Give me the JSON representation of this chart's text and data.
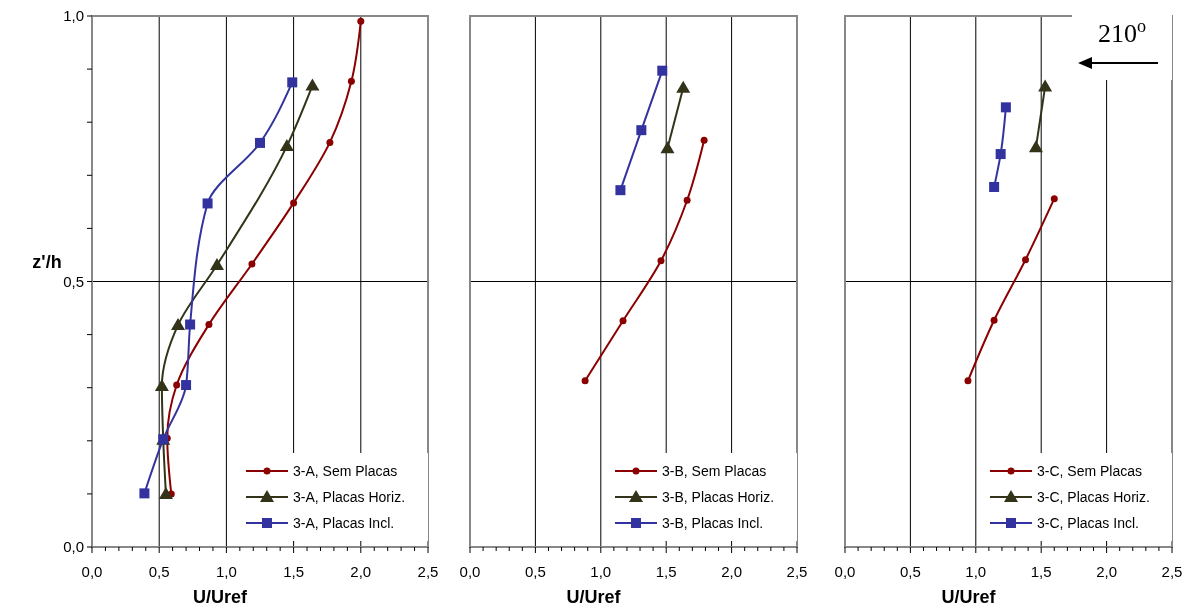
{
  "chart_data": [
    {
      "type": "line",
      "xlabel": "U/Uref",
      "ylabel": "z'/h",
      "xlim": [
        0,
        2.5
      ],
      "ylim": [
        0,
        1
      ],
      "xticks": [
        {
          "value": 0,
          "label": "0,0"
        },
        {
          "value": 0.1,
          "label": null
        },
        {
          "value": 0.2,
          "label": null
        },
        {
          "value": 0.3,
          "label": null
        },
        {
          "value": 0.4,
          "label": null
        },
        {
          "value": 0.5,
          "label": "0,5"
        },
        {
          "value": 0.6,
          "label": null
        },
        {
          "value": 0.7,
          "label": null
        },
        {
          "value": 0.8,
          "label": null
        },
        {
          "value": 0.9,
          "label": null
        },
        {
          "value": 1,
          "label": "1,0"
        },
        {
          "value": 1.1,
          "label": null
        },
        {
          "value": 1.2,
          "label": null
        },
        {
          "value": 1.3,
          "label": null
        },
        {
          "value": 1.4,
          "label": null
        },
        {
          "value": 1.5,
          "label": "1,5"
        },
        {
          "value": 1.6,
          "label": null
        },
        {
          "value": 1.7,
          "label": null
        },
        {
          "value": 1.8,
          "label": null
        },
        {
          "value": 1.9,
          "label": null
        },
        {
          "value": 2,
          "label": "2,0"
        },
        {
          "value": 2.1,
          "label": null
        },
        {
          "value": 2.2,
          "label": null
        },
        {
          "value": 2.3,
          "label": null
        },
        {
          "value": 2.4,
          "label": null
        },
        {
          "value": 2.5,
          "label": "2,5"
        }
      ],
      "yticks": [
        {
          "value": 0,
          "label": "0,0"
        },
        {
          "value": 0.1,
          "label": null
        },
        {
          "value": 0.2,
          "label": null
        },
        {
          "value": 0.3,
          "label": null
        },
        {
          "value": 0.4,
          "label": null
        },
        {
          "value": 0.5,
          "label": "0,5"
        },
        {
          "value": 0.6,
          "label": null
        },
        {
          "value": 0.7,
          "label": null
        },
        {
          "value": 0.8,
          "label": null
        },
        {
          "value": 0.9,
          "label": null
        },
        {
          "value": 1,
          "label": "1,0"
        }
      ],
      "grid": true,
      "legend": "bottom right",
      "line_style": "solid",
      "series": [
        {
          "name": "3-A, Sem Placas",
          "color": "#8b0000",
          "marker": "circle",
          "x": [
            0.59,
            0.56,
            0.63,
            0.87,
            1.19,
            1.5,
            1.77,
            1.93,
            2.0
          ],
          "values": [
            0.1,
            0.205,
            0.305,
            0.419,
            0.533,
            0.648,
            0.762,
            0.877,
            0.99
          ]
        },
        {
          "name": "3-A, Placas Horiz.",
          "color": "#333319",
          "marker": "triangle",
          "x": [
            0.55,
            0.53,
            0.52,
            0.64,
            0.93,
            1.45,
            1.64
          ],
          "values": [
            0.1,
            0.202,
            0.303,
            0.418,
            0.531,
            0.755,
            0.869
          ]
        },
        {
          "name": "3-A, Placas Incl.",
          "color": "#3333a0",
          "marker": "square",
          "x": [
            0.39,
            0.53,
            0.7,
            0.73,
            0.86,
            1.25,
            1.49
          ],
          "values": [
            0.101,
            0.203,
            0.305,
            0.419,
            0.647,
            0.761,
            0.875
          ]
        }
      ]
    },
    {
      "type": "line",
      "xlabel": "U/Uref",
      "xlim": [
        0,
        2.5
      ],
      "ylim": [
        0,
        1
      ],
      "tick_labels": "x",
      "xticks": [
        {
          "value": 0,
          "label": "0,0"
        },
        {
          "value": 0.1,
          "label": null
        },
        {
          "value": 0.2,
          "label": null
        },
        {
          "value": 0.3,
          "label": null
        },
        {
          "value": 0.4,
          "label": null
        },
        {
          "value": 0.5,
          "label": "0,5"
        },
        {
          "value": 0.6,
          "label": null
        },
        {
          "value": 0.7,
          "label": null
        },
        {
          "value": 0.8,
          "label": null
        },
        {
          "value": 0.9,
          "label": null
        },
        {
          "value": 1,
          "label": "1,0"
        },
        {
          "value": 1.1,
          "label": null
        },
        {
          "value": 1.2,
          "label": null
        },
        {
          "value": 1.3,
          "label": null
        },
        {
          "value": 1.4,
          "label": null
        },
        {
          "value": 1.5,
          "label": "1,5"
        },
        {
          "value": 1.6,
          "label": null
        },
        {
          "value": 1.7,
          "label": null
        },
        {
          "value": 1.8,
          "label": null
        },
        {
          "value": 1.9,
          "label": null
        },
        {
          "value": 2,
          "label": "2,0"
        },
        {
          "value": 2.1,
          "label": null
        },
        {
          "value": 2.2,
          "label": null
        },
        {
          "value": 2.3,
          "label": null
        },
        {
          "value": 2.4,
          "label": null
        },
        {
          "value": 2.5,
          "label": "2,5"
        }
      ],
      "yticks": [
        {
          "value": 0,
          "label": null
        },
        {
          "value": 0.5,
          "label": null
        },
        {
          "value": 1,
          "label": null
        }
      ],
      "grid": true,
      "legend": "bottom right",
      "line_style": "solid",
      "series": [
        {
          "name": "3-B, Sem Placas",
          "color": "#8b0000",
          "marker": "circle",
          "x": [
            0.88,
            1.17,
            1.46,
            1.66,
            1.79
          ],
          "values": [
            0.313,
            0.426,
            0.539,
            0.653,
            0.766
          ]
        },
        {
          "name": "3-B, Placas Horiz.",
          "color": "#333319",
          "marker": "triangle",
          "x": [
            1.51,
            1.63
          ],
          "values": [
            0.751,
            0.865
          ]
        },
        {
          "name": "3-B, Placas Incl.",
          "color": "#3333a0",
          "marker": "square",
          "x": [
            1.15,
            1.31,
            1.47
          ],
          "values": [
            0.672,
            0.785,
            0.897
          ]
        }
      ]
    },
    {
      "type": "line",
      "xlabel": "U/Uref",
      "xlim": [
        0,
        2.5
      ],
      "ylim": [
        0,
        1
      ],
      "tick_labels": "x",
      "xticks": [
        {
          "value": 0,
          "label": "0,0"
        },
        {
          "value": 0.1,
          "label": null
        },
        {
          "value": 0.2,
          "label": null
        },
        {
          "value": 0.3,
          "label": null
        },
        {
          "value": 0.4,
          "label": null
        },
        {
          "value": 0.5,
          "label": "0,5"
        },
        {
          "value": 0.6,
          "label": null
        },
        {
          "value": 0.7,
          "label": null
        },
        {
          "value": 0.8,
          "label": null
        },
        {
          "value": 0.9,
          "label": null
        },
        {
          "value": 1,
          "label": "1,0"
        },
        {
          "value": 1.1,
          "label": null
        },
        {
          "value": 1.2,
          "label": null
        },
        {
          "value": 1.3,
          "label": null
        },
        {
          "value": 1.4,
          "label": null
        },
        {
          "value": 1.5,
          "label": "1,5"
        },
        {
          "value": 1.6,
          "label": null
        },
        {
          "value": 1.7,
          "label": null
        },
        {
          "value": 1.8,
          "label": null
        },
        {
          "value": 1.9,
          "label": null
        },
        {
          "value": 2,
          "label": "2,0"
        },
        {
          "value": 2.1,
          "label": null
        },
        {
          "value": 2.2,
          "label": null
        },
        {
          "value": 2.3,
          "label": null
        },
        {
          "value": 2.4,
          "label": null
        },
        {
          "value": 2.5,
          "label": "2,5"
        }
      ],
      "yticks": [
        {
          "value": 0,
          "label": null
        },
        {
          "value": 0.5,
          "label": null
        },
        {
          "value": 1,
          "label": null
        }
      ],
      "grid": true,
      "legend": "bottom right",
      "line_style": "solid",
      "annotations": [
        "210$^{o}$"
      ],
      "series": [
        {
          "name": "3-C, Sem Placas",
          "color": "#8b0000",
          "marker": "circle",
          "x": [
            0.94,
            1.14,
            1.38,
            1.6
          ],
          "values": [
            0.313,
            0.427,
            0.541,
            0.656
          ]
        },
        {
          "name": "3-C, Placas Horiz.",
          "color": "#333319",
          "marker": "triangle",
          "x": [
            1.46,
            1.53
          ],
          "values": [
            0.753,
            0.867
          ]
        },
        {
          "name": "3-C, Placas Incl.",
          "color": "#3333a0",
          "marker": "square",
          "x": [
            1.14,
            1.19,
            1.23
          ],
          "values": [
            0.678,
            0.74,
            0.828
          ]
        }
      ]
    }
  ]
}
